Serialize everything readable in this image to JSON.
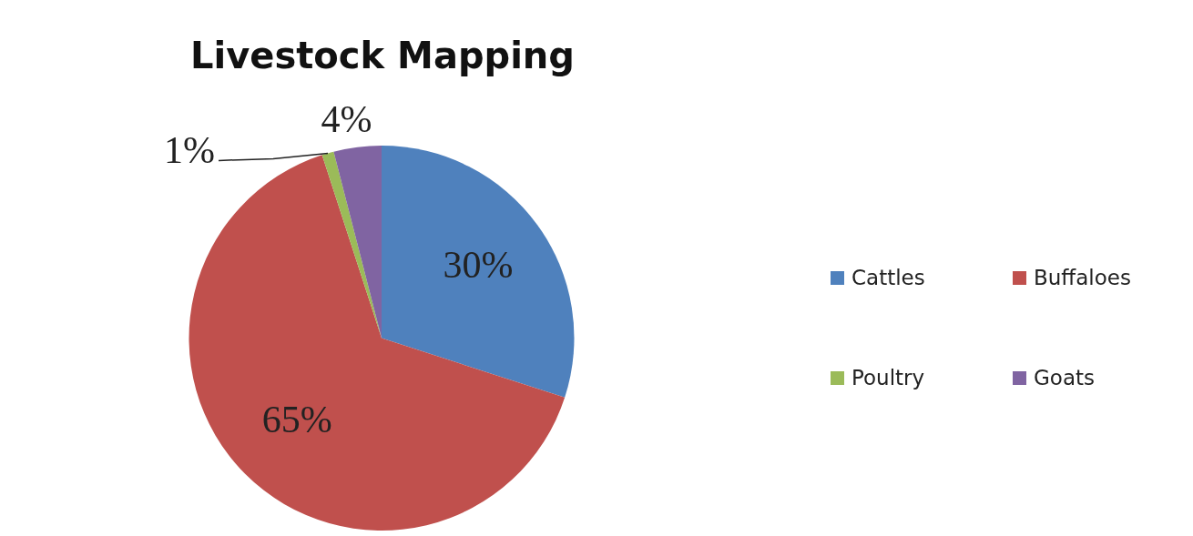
{
  "chart_data": {
    "type": "pie",
    "title": "Livestock Mapping",
    "categories": [
      "Cattles",
      "Buffaloes",
      "Poultry",
      "Goats"
    ],
    "values": [
      30,
      65,
      1,
      4
    ],
    "colors": [
      "#4f81bd",
      "#c0504d",
      "#9bbb59",
      "#8064a2"
    ],
    "value_labels": [
      "30%",
      "65%",
      "1%",
      "4%"
    ],
    "legend": "right"
  }
}
